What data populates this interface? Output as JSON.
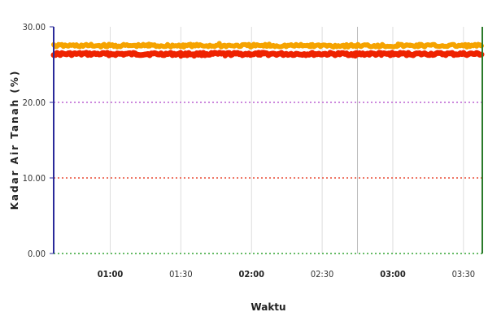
{
  "chart_data": {
    "type": "line",
    "xlabel": "Waktu",
    "ylabel": "Kadar Air Tanah (%)",
    "ylim": [
      0,
      30
    ],
    "xlim": [
      "00:36",
      "03:38"
    ],
    "y_ticks": [
      "0.00",
      "10.00",
      "20.00",
      "30.00"
    ],
    "x_ticks": [
      {
        "label": "01:00",
        "major": true
      },
      {
        "label": "01:30",
        "major": false
      },
      {
        "label": "02:00",
        "major": true
      },
      {
        "label": "02:30",
        "major": false
      },
      {
        "label": "03:00",
        "major": true
      },
      {
        "label": "03:30",
        "major": false
      }
    ],
    "threshold_lines": [
      {
        "y": 20,
        "color": "#cc88dd"
      },
      {
        "y": 10,
        "color": "#ee7766"
      },
      {
        "y": 0,
        "color": "#66bb66"
      }
    ],
    "vertical_marker": "02:45",
    "series": [
      {
        "color": "#ee2200",
        "x": [
          "00:36",
          "03:38"
        ],
        "y": [
          26.4,
          26.4
        ]
      },
      {
        "color": "#f5a300",
        "x": [
          "00:36",
          "03:38"
        ],
        "y": [
          27.5,
          27.5
        ]
      }
    ],
    "grid": true,
    "colors": {
      "left_axis": "#2a2a9a",
      "right_axis": "#2a7a2a",
      "grid": "#dddddd",
      "marker": "#bbbbbb"
    }
  }
}
